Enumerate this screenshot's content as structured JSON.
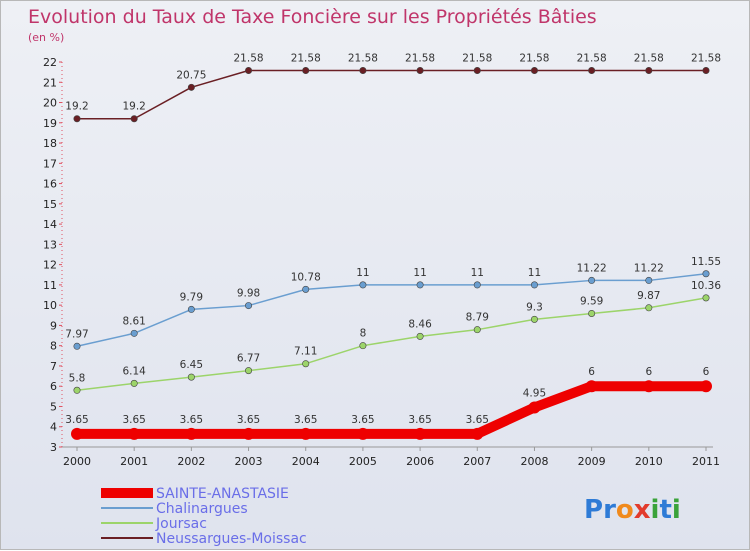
{
  "chart_data": {
    "type": "line",
    "title": "Evolution du Taux de Taxe Foncière sur les Propriétés Bâties",
    "subtitle": "(en %)",
    "xlabel": "",
    "ylabel": "",
    "x": [
      "2000",
      "2001",
      "2002",
      "2003",
      "2004",
      "2005",
      "2006",
      "2007",
      "2008",
      "2009",
      "2010",
      "2011"
    ],
    "ylim": [
      3,
      22
    ],
    "yticks": [
      "3",
      "4",
      "5",
      "6",
      "7",
      "8",
      "9",
      "10",
      "11",
      "12",
      "13",
      "14",
      "15",
      "16",
      "17",
      "18",
      "19",
      "20",
      "21",
      "22"
    ],
    "grid": false,
    "legend_position": "bottom-left",
    "series": [
      {
        "name": "SAINTE-ANASTASIE",
        "color": "#ee0000",
        "values": [
          3.65,
          3.65,
          3.65,
          3.65,
          3.65,
          3.65,
          3.65,
          3.65,
          4.95,
          6,
          6,
          6
        ],
        "labels": [
          "3.65",
          "3.65",
          "3.65",
          "3.65",
          "3.65",
          "3.65",
          "3.65",
          "3.65",
          "4.95",
          "6",
          "6",
          "6"
        ]
      },
      {
        "name": "Chalinargues",
        "color": "#6a9ed0",
        "values": [
          7.97,
          8.61,
          9.79,
          9.98,
          10.78,
          11,
          11,
          11,
          11,
          11.22,
          11.22,
          11.55
        ],
        "labels": [
          "7.97",
          "8.61",
          "9.79",
          "9.98",
          "10.78",
          "11",
          "11",
          "11",
          "11",
          "11.22",
          "11.22",
          "11.55"
        ]
      },
      {
        "name": "Joursac",
        "color": "#9cd46a",
        "values": [
          5.8,
          6.14,
          6.45,
          6.77,
          7.11,
          8,
          8.46,
          8.79,
          9.3,
          9.59,
          9.87,
          10.36
        ],
        "labels": [
          "5.8",
          "6.14",
          "6.45",
          "6.77",
          "7.11",
          "8",
          "8.46",
          "8.79",
          "9.3",
          "9.59",
          "9.87",
          "10.36"
        ]
      },
      {
        "name": "Neussargues-Moissac",
        "color": "#6a1f24",
        "values": [
          19.2,
          19.2,
          20.75,
          21.58,
          21.58,
          21.58,
          21.58,
          21.58,
          21.58,
          21.58,
          21.58,
          21.58
        ],
        "labels": [
          "19.2",
          "19.2",
          "20.75",
          "21.58",
          "21.58",
          "21.58",
          "21.58",
          "21.58",
          "21.58",
          "21.58",
          "21.58",
          "21.58"
        ]
      }
    ]
  },
  "logo": {
    "text": "Proxiti",
    "letters": [
      "P",
      "r",
      "o",
      "x",
      "i",
      "t",
      "i"
    ],
    "colors": [
      "#2e7bd6",
      "#2e7bd6",
      "#f08a1c",
      "#e23b2c",
      "#3aa33a",
      "#2e7bd6",
      "#3aa33a"
    ]
  }
}
